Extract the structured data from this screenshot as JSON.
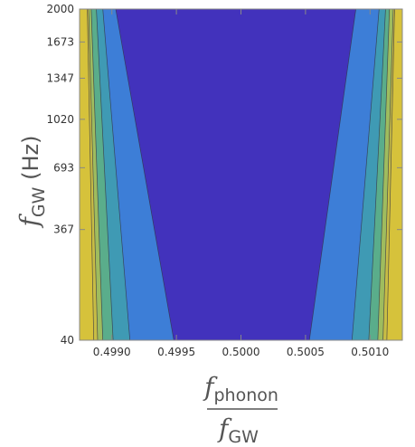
{
  "chart_data": {
    "type": "contour",
    "title": "",
    "xlabel_numerator_symbol": "f",
    "xlabel_numerator_subscript": "phonon",
    "xlabel_denominator_symbol": "f",
    "xlabel_denominator_subscript": "GW",
    "ylabel_symbol": "f",
    "ylabel_subscript": "GW",
    "ylabel_unit": "(Hz)",
    "xlim": [
      0.49875,
      0.50125
    ],
    "ylim": [
      40,
      2000
    ],
    "y_scale": "sqrt",
    "x_ticks": [
      {
        "value": 0.499,
        "label": "0.4990"
      },
      {
        "value": 0.4995,
        "label": "0.4995"
      },
      {
        "value": 0.5,
        "label": "0.5000"
      },
      {
        "value": 0.5005,
        "label": "0.5005"
      },
      {
        "value": 0.501,
        "label": "0.5010"
      }
    ],
    "y_ticks": [
      {
        "value": 40,
        "label": "40"
      },
      {
        "value": 367,
        "label": "367"
      },
      {
        "value": 693,
        "label": "693"
      },
      {
        "value": 1020,
        "label": "1020"
      },
      {
        "value": 1347,
        "label": "1347"
      },
      {
        "value": 1673,
        "label": "1673"
      },
      {
        "value": 2000,
        "label": "2000"
      }
    ],
    "contour_levels": [
      {
        "color": "#4232BC",
        "bottom": [
          0.49948,
          0.50053
        ],
        "top": [
          0.49903,
          0.50089
        ]
      },
      {
        "color": "#3D7ED7",
        "bottom": [
          0.49914,
          0.50086
        ],
        "top": [
          0.49893,
          0.50107
        ]
      },
      {
        "color": "#3F9AB4",
        "bottom": [
          0.49901,
          0.50099
        ],
        "top": [
          0.49888,
          0.50112
        ]
      },
      {
        "color": "#5AAD8B",
        "bottom": [
          0.49893,
          0.50106
        ],
        "top": [
          0.49884,
          0.50115
        ]
      },
      {
        "color": "#9FBC5E",
        "bottom": [
          0.49889,
          0.5011
        ],
        "top": [
          0.49882,
          0.50118
        ]
      },
      {
        "color": "#C8BD45",
        "bottom": [
          0.49886,
          0.50113
        ],
        "top": [
          0.49881,
          0.50119
        ]
      }
    ],
    "outer_fill": "#D6C23B",
    "grid": false,
    "legend": "none"
  }
}
